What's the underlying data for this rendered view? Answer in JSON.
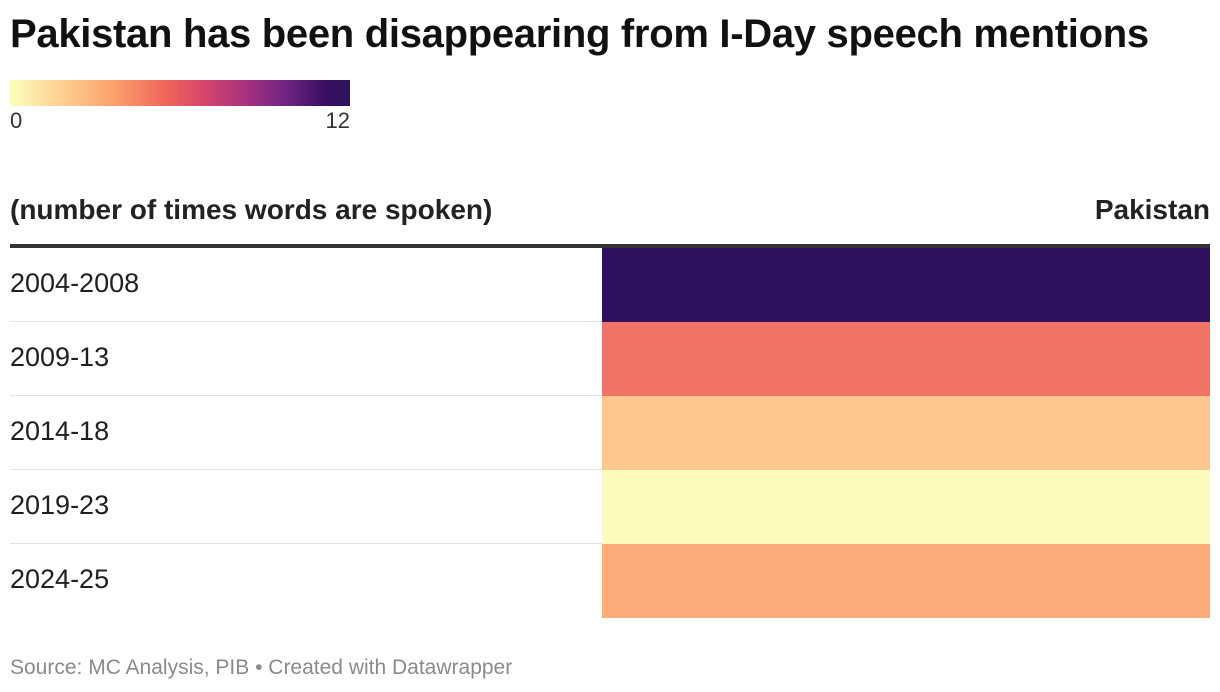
{
  "chart_data": {
    "type": "heatmap",
    "title": "Pakistan has been disappearing from I-Day speech mentions",
    "legend": {
      "min_label": "0",
      "max_label": "12",
      "min": 0,
      "max": 12
    },
    "row_header": "(number of times words are spoken)",
    "columns": [
      "Pakistan"
    ],
    "categories": [
      "2004-2008",
      "2009-13",
      "2014-18",
      "2019-23",
      "2024-25"
    ],
    "series": [
      {
        "name": "Pakistan",
        "values": [
          12,
          5,
          2,
          0,
          3
        ],
        "colors": [
          "#2d115f",
          "#ef7366",
          "#fec78f",
          "#fbfbbd",
          "#fcab7b"
        ]
      }
    ],
    "source": "Source: MC Analysis, PIB • Created with Datawrapper"
  }
}
